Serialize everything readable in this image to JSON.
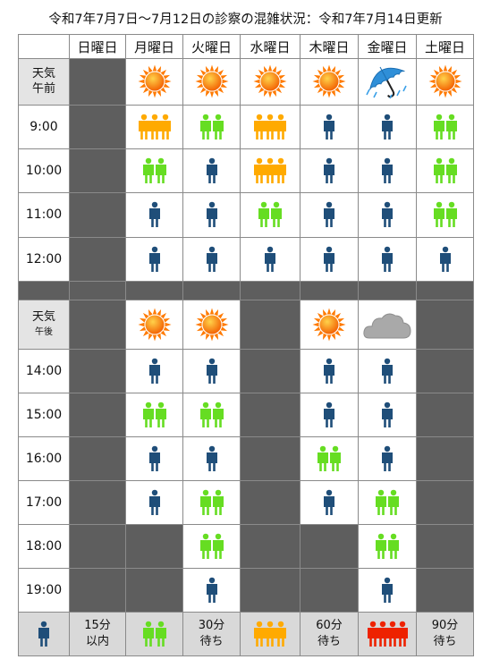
{
  "title": "令和7年7月7日～7月12日の診察の混雑状況：令和7年7月14日更新",
  "days": [
    "",
    "日曜日",
    "月曜日",
    "火曜日",
    "水曜日",
    "木曜日",
    "金曜日",
    "土曜日"
  ],
  "weather_label": "天気",
  "am_label": "午前",
  "pm_label": "午後",
  "colors": {
    "blue": "#1f4e79",
    "green": "#66dd22",
    "orange": "#ffaa00",
    "red": "#ee2200",
    "closed": "#5e5e5e"
  },
  "am": {
    "weather": [
      "closed",
      "sunny-icon",
      "sunny-icon",
      "sunny-icon",
      "sunny-icon",
      "umbrella-rain-icon",
      "sunny-icon"
    ],
    "rows": [
      {
        "time": "9:00",
        "cells": [
          "closed",
          "o3",
          "g2",
          "o3",
          "b1",
          "b1",
          "g2"
        ]
      },
      {
        "time": "10:00",
        "cells": [
          "closed",
          "g2",
          "b1",
          "o3",
          "b1",
          "b1",
          "g2"
        ]
      },
      {
        "time": "11:00",
        "cells": [
          "closed",
          "b1",
          "b1",
          "g2",
          "b1",
          "b1",
          "g2"
        ]
      },
      {
        "time": "12:00",
        "cells": [
          "closed",
          "b1",
          "b1",
          "b1",
          "b1",
          "b1",
          "b1"
        ]
      }
    ]
  },
  "pm": {
    "weather": [
      "closed",
      "sunny-icon",
      "sunny-icon",
      "closed",
      "sunny-icon",
      "cloudy-icon",
      "closed"
    ],
    "rows": [
      {
        "time": "14:00",
        "cells": [
          "closed",
          "b1",
          "b1",
          "closed",
          "b1",
          "b1",
          "closed"
        ]
      },
      {
        "time": "15:00",
        "cells": [
          "closed",
          "g2",
          "g2",
          "closed",
          "b1",
          "b1",
          "closed"
        ]
      },
      {
        "time": "16:00",
        "cells": [
          "closed",
          "b1",
          "b1",
          "closed",
          "g2",
          "b1",
          "closed"
        ]
      },
      {
        "time": "17:00",
        "cells": [
          "closed",
          "b1",
          "g2",
          "closed",
          "b1",
          "g2",
          "closed"
        ]
      },
      {
        "time": "18:00",
        "cells": [
          "closed",
          "closed",
          "g2",
          "closed",
          "closed",
          "g2",
          "closed"
        ]
      },
      {
        "time": "19:00",
        "cells": [
          "closed",
          "closed",
          "b1",
          "closed",
          "closed",
          "b1",
          "closed"
        ]
      }
    ]
  },
  "legend": [
    {
      "code": "b1",
      "line1": "15分",
      "line2": "以内"
    },
    {
      "code": "g2",
      "line1": "30分",
      "line2": "待ち"
    },
    {
      "code": "o3",
      "line1": "60分",
      "line2": "待ち"
    },
    {
      "code": "r4",
      "line1": "90分",
      "line2": "待ち"
    }
  ]
}
